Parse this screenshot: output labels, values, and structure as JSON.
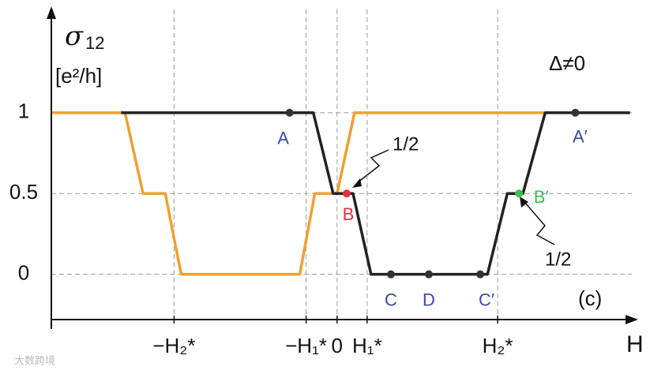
{
  "chart_data": {
    "type": "line",
    "ylabel_symbol": "σ",
    "ylabel_subscript": "12",
    "yunit": "[e²/h]",
    "xlabel": "H",
    "annotation_condition": "Δ≠0",
    "panel_label": "(c)",
    "half_labels": [
      "1/2",
      "1/2"
    ],
    "watermark": "大数跨境",
    "xlim": [
      -9.5,
      9.8
    ],
    "ylim": [
      -0.28,
      1.6
    ],
    "xticks": [
      {
        "value": -5.42,
        "label": "−H₂*"
      },
      {
        "value": -1.03,
        "label": "−H₁*"
      },
      0,
      {
        "value": 1,
        "label": "H₁*"
      },
      {
        "value": 5.34,
        "label": "H₂*"
      }
    ],
    "yticks": [
      0,
      0.5,
      1
    ],
    "series": [
      {
        "color": "#f0a030",
        "x": [
          -9.47,
          -7.05,
          -6.75,
          -6.45,
          -5.71,
          -5.45,
          -5.18,
          -1.24,
          -0.99,
          -0.74,
          0,
          0.29,
          0.58,
          6.97
        ],
        "values": [
          1,
          1,
          0.75,
          0.5,
          0.5,
          0.25,
          0,
          0,
          0.25,
          0.5,
          0.5,
          0.75,
          1,
          1
        ]
      },
      {
        "color": "#222222",
        "x": [
          -7.18,
          -0.79,
          -0.46,
          -0.13,
          0.53,
          0.83,
          1.13,
          5.0,
          5.33,
          5.66,
          6.18,
          6.55,
          6.92,
          9.74
        ],
        "values": [
          1,
          1,
          0.75,
          0.5,
          0.5,
          0.25,
          0,
          0,
          0.25,
          0.5,
          0.5,
          0.75,
          1,
          1
        ]
      }
    ],
    "points": [
      {
        "label": "A",
        "x": -1.58,
        "y": 1,
        "color": "#333333",
        "label_color": "#3b4aa8"
      },
      {
        "label": "B",
        "x": 0.32,
        "y": 0.5,
        "color": "#e8303c",
        "label_color": "#e8303c"
      },
      {
        "label": "C",
        "x": 1.79,
        "y": 0,
        "color": "#333333",
        "label_color": "#3b4aa8"
      },
      {
        "label": "D",
        "x": 3.05,
        "y": 0,
        "color": "#333333",
        "label_color": "#3b4aa8"
      },
      {
        "label": "C′",
        "x": 4.76,
        "y": 0,
        "color": "#333333",
        "label_color": "#3b4aa8"
      },
      {
        "label": "B′",
        "x": 6.05,
        "y": 0.5,
        "color": "#3cc050",
        "label_color": "#3cc050"
      },
      {
        "label": "A′",
        "x": 7.92,
        "y": 1,
        "color": "#333333",
        "label_color": "#3b4aa8"
      }
    ]
  }
}
